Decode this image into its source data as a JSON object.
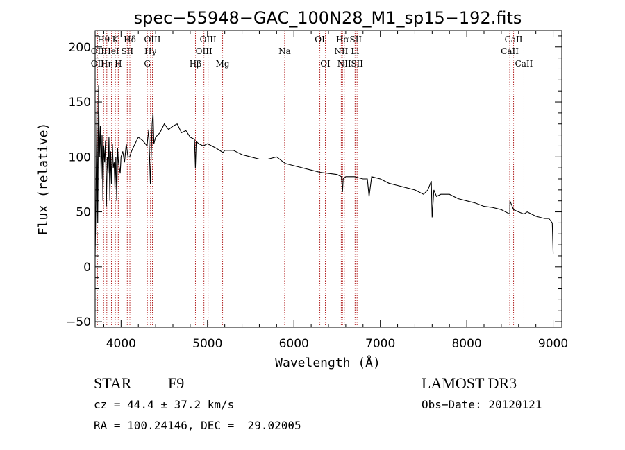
{
  "chart_data": {
    "type": "line",
    "title": "spec−55948−GAC_100N28_M1_sp15−192.fits",
    "xlabel": "Wavelength (Å)",
    "ylabel": "Flux (relative)",
    "xlim": [
      3700,
      9100
    ],
    "ylim": [
      -55,
      215
    ],
    "xticks": [
      4000,
      5000,
      6000,
      7000,
      8000,
      9000
    ],
    "yticks": [
      -50,
      0,
      50,
      100,
      150,
      200
    ],
    "ytick_labels": [
      "−50",
      "0",
      "50",
      "100",
      "150",
      "200"
    ],
    "grid": false,
    "series": [
      {
        "name": "spectrum",
        "x": [
          3700,
          3710,
          3720,
          3730,
          3740,
          3750,
          3760,
          3770,
          3780,
          3790,
          3800,
          3810,
          3820,
          3830,
          3840,
          3850,
          3860,
          3870,
          3880,
          3890,
          3900,
          3910,
          3920,
          3930,
          3940,
          3950,
          3960,
          3970,
          3980,
          3990,
          4000,
          4020,
          4040,
          4060,
          4080,
          4100,
          4120,
          4150,
          4200,
          4250,
          4300,
          4320,
          4340,
          4360,
          4370,
          4380,
          4400,
          4450,
          4500,
          4550,
          4600,
          4650,
          4700,
          4750,
          4800,
          4850,
          4860,
          4870,
          4900,
          4950,
          5000,
          5100,
          5180,
          5200,
          5300,
          5400,
          5500,
          5600,
          5700,
          5800,
          5900,
          6000,
          6100,
          6200,
          6300,
          6400,
          6500,
          6550,
          6562,
          6570,
          6600,
          6700,
          6800,
          6850,
          6870,
          6900,
          7000,
          7100,
          7200,
          7300,
          7400,
          7500,
          7550,
          7590,
          7600,
          7620,
          7650,
          7700,
          7800,
          7900,
          8000,
          8100,
          8200,
          8300,
          8400,
          8498,
          8500,
          8542,
          8600,
          8662,
          8700,
          8800,
          8900,
          8950,
          8990,
          9000
        ],
        "values": [
          10,
          60,
          150,
          40,
          165,
          100,
          128,
          80,
          120,
          60,
          110,
          95,
          115,
          55,
          100,
          85,
          118,
          60,
          105,
          75,
          112,
          90,
          95,
          70,
          100,
          60,
          108,
          95,
          90,
          85,
          100,
          105,
          95,
          112,
          100,
          100,
          105,
          110,
          118,
          115,
          110,
          125,
          75,
          130,
          140,
          112,
          118,
          122,
          130,
          125,
          128,
          130,
          122,
          124,
          118,
          116,
          90,
          114,
          112,
          110,
          112,
          108,
          104,
          106,
          106,
          102,
          100,
          98,
          98,
          100,
          94,
          92,
          90,
          88,
          86,
          85,
          84,
          82,
          68,
          80,
          82,
          82,
          80,
          80,
          64,
          82,
          80,
          76,
          74,
          72,
          70,
          66,
          70,
          78,
          45,
          70,
          64,
          66,
          66,
          62,
          60,
          58,
          55,
          54,
          52,
          48,
          60,
          52,
          50,
          48,
          50,
          46,
          44,
          44,
          40,
          12
        ]
      }
    ],
    "spectral_lines": [
      {
        "label": "Hθ",
        "x": 3798,
        "row": 1
      },
      {
        "label": "OII",
        "x": 3727,
        "row": 2
      },
      {
        "label": "OII",
        "x": 3727,
        "row": 3
      },
      {
        "label": "K",
        "x": 3934,
        "row": 1
      },
      {
        "label": "HeI",
        "x": 3889,
        "row": 2
      },
      {
        "label": "Hη",
        "x": 3835,
        "row": 3
      },
      {
        "label": "SII",
        "x": 4072,
        "row": 2
      },
      {
        "label": "H",
        "x": 3968,
        "row": 3
      },
      {
        "label": "Hδ",
        "x": 4102,
        "row": 1
      },
      {
        "label": "OIII",
        "x": 4363,
        "row": 1
      },
      {
        "label": "Hγ",
        "x": 4341,
        "row": 2
      },
      {
        "label": "G",
        "x": 4304,
        "row": 3
      },
      {
        "label": "Hβ",
        "x": 4861,
        "row": 3
      },
      {
        "label": "OIII",
        "x": 5007,
        "row": 1
      },
      {
        "label": "OIII",
        "x": 4959,
        "row": 2
      },
      {
        "label": "Mg",
        "x": 5175,
        "row": 3
      },
      {
        "label": "Na",
        "x": 5893,
        "row": 2
      },
      {
        "label": "OI",
        "x": 6300,
        "row": 1
      },
      {
        "label": "OI",
        "x": 6364,
        "row": 3
      },
      {
        "label": "Hα",
        "x": 6563,
        "row": 1
      },
      {
        "label": "NII",
        "x": 6548,
        "row": 2
      },
      {
        "label": "NII",
        "x": 6583,
        "row": 3
      },
      {
        "label": "SII",
        "x": 6716,
        "row": 1
      },
      {
        "label": "Li",
        "x": 6708,
        "row": 2
      },
      {
        "label": "SII",
        "x": 6731,
        "row": 3
      },
      {
        "label": "CaII",
        "x": 8542,
        "row": 1
      },
      {
        "label": "CaII",
        "x": 8498,
        "row": 2
      },
      {
        "label": "CaII",
        "x": 8662,
        "row": 3
      }
    ]
  },
  "info": {
    "object_type": "STAR",
    "subclass": "F9",
    "survey": "LAMOST DR3",
    "redshift": "cz = 44.4 ± 37.2 km/s",
    "obs_date": "Obs−Date: 20120121",
    "coords": "RA = 100.24146, DEC =  29.02005"
  }
}
